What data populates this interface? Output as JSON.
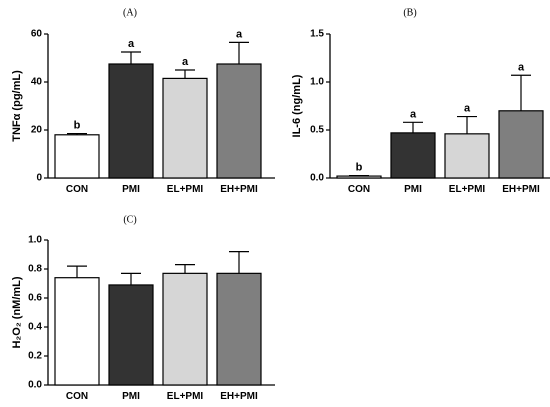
{
  "chart_data": [
    {
      "type": "bar",
      "panel_label": "(A)",
      "ylabel": "TNFα (pg/mL)",
      "categories": [
        "CON",
        "PMI",
        "EL+PMI",
        "EH+PMI"
      ],
      "values": [
        18,
        47.5,
        41.5,
        47.5
      ],
      "errors": [
        0.5,
        5,
        3.5,
        9
      ],
      "significance": [
        "b",
        "a",
        "a",
        "a"
      ],
      "colors": [
        "#ffffff",
        "#333333",
        "#d6d6d6",
        "#7f7f7f"
      ],
      "ylim": [
        0,
        60
      ],
      "yticks": [
        0,
        20,
        40,
        60
      ],
      "ytick_labels": [
        "0",
        "20",
        "40",
        "60"
      ]
    },
    {
      "type": "bar",
      "panel_label": "(B)",
      "ylabel": "IL-6 (ng/mL)",
      "categories": [
        "CON",
        "PMI",
        "EL+PMI",
        "EH+PMI"
      ],
      "values": [
        0.02,
        0.47,
        0.46,
        0.7
      ],
      "errors": [
        0.005,
        0.11,
        0.18,
        0.37
      ],
      "significance": [
        "b",
        "a",
        "a",
        "a"
      ],
      "colors": [
        "#ffffff",
        "#333333",
        "#d6d6d6",
        "#7f7f7f"
      ],
      "ylim": [
        0,
        1.5
      ],
      "yticks": [
        0,
        0.5,
        1,
        1.5
      ],
      "ytick_labels": [
        "0.0",
        "0.5",
        "1.0",
        "1.5"
      ]
    },
    {
      "type": "bar",
      "panel_label": "(C)",
      "ylabel": "H₂O₂ (nM/mL)",
      "categories": [
        "CON",
        "PMI",
        "EL+PMI",
        "EH+PMI"
      ],
      "values": [
        0.74,
        0.69,
        0.77,
        0.77
      ],
      "errors": [
        0.08,
        0.08,
        0.06,
        0.15
      ],
      "significance": [
        "",
        "",
        "",
        ""
      ],
      "colors": [
        "#ffffff",
        "#333333",
        "#d6d6d6",
        "#7f7f7f"
      ],
      "ylim": [
        0,
        1.0
      ],
      "yticks": [
        0,
        0.2,
        0.4,
        0.6,
        0.8,
        1.0
      ],
      "ytick_labels": [
        "0.0",
        "0.2",
        "0.4",
        "0.6",
        "0.8",
        "1.0"
      ]
    }
  ]
}
